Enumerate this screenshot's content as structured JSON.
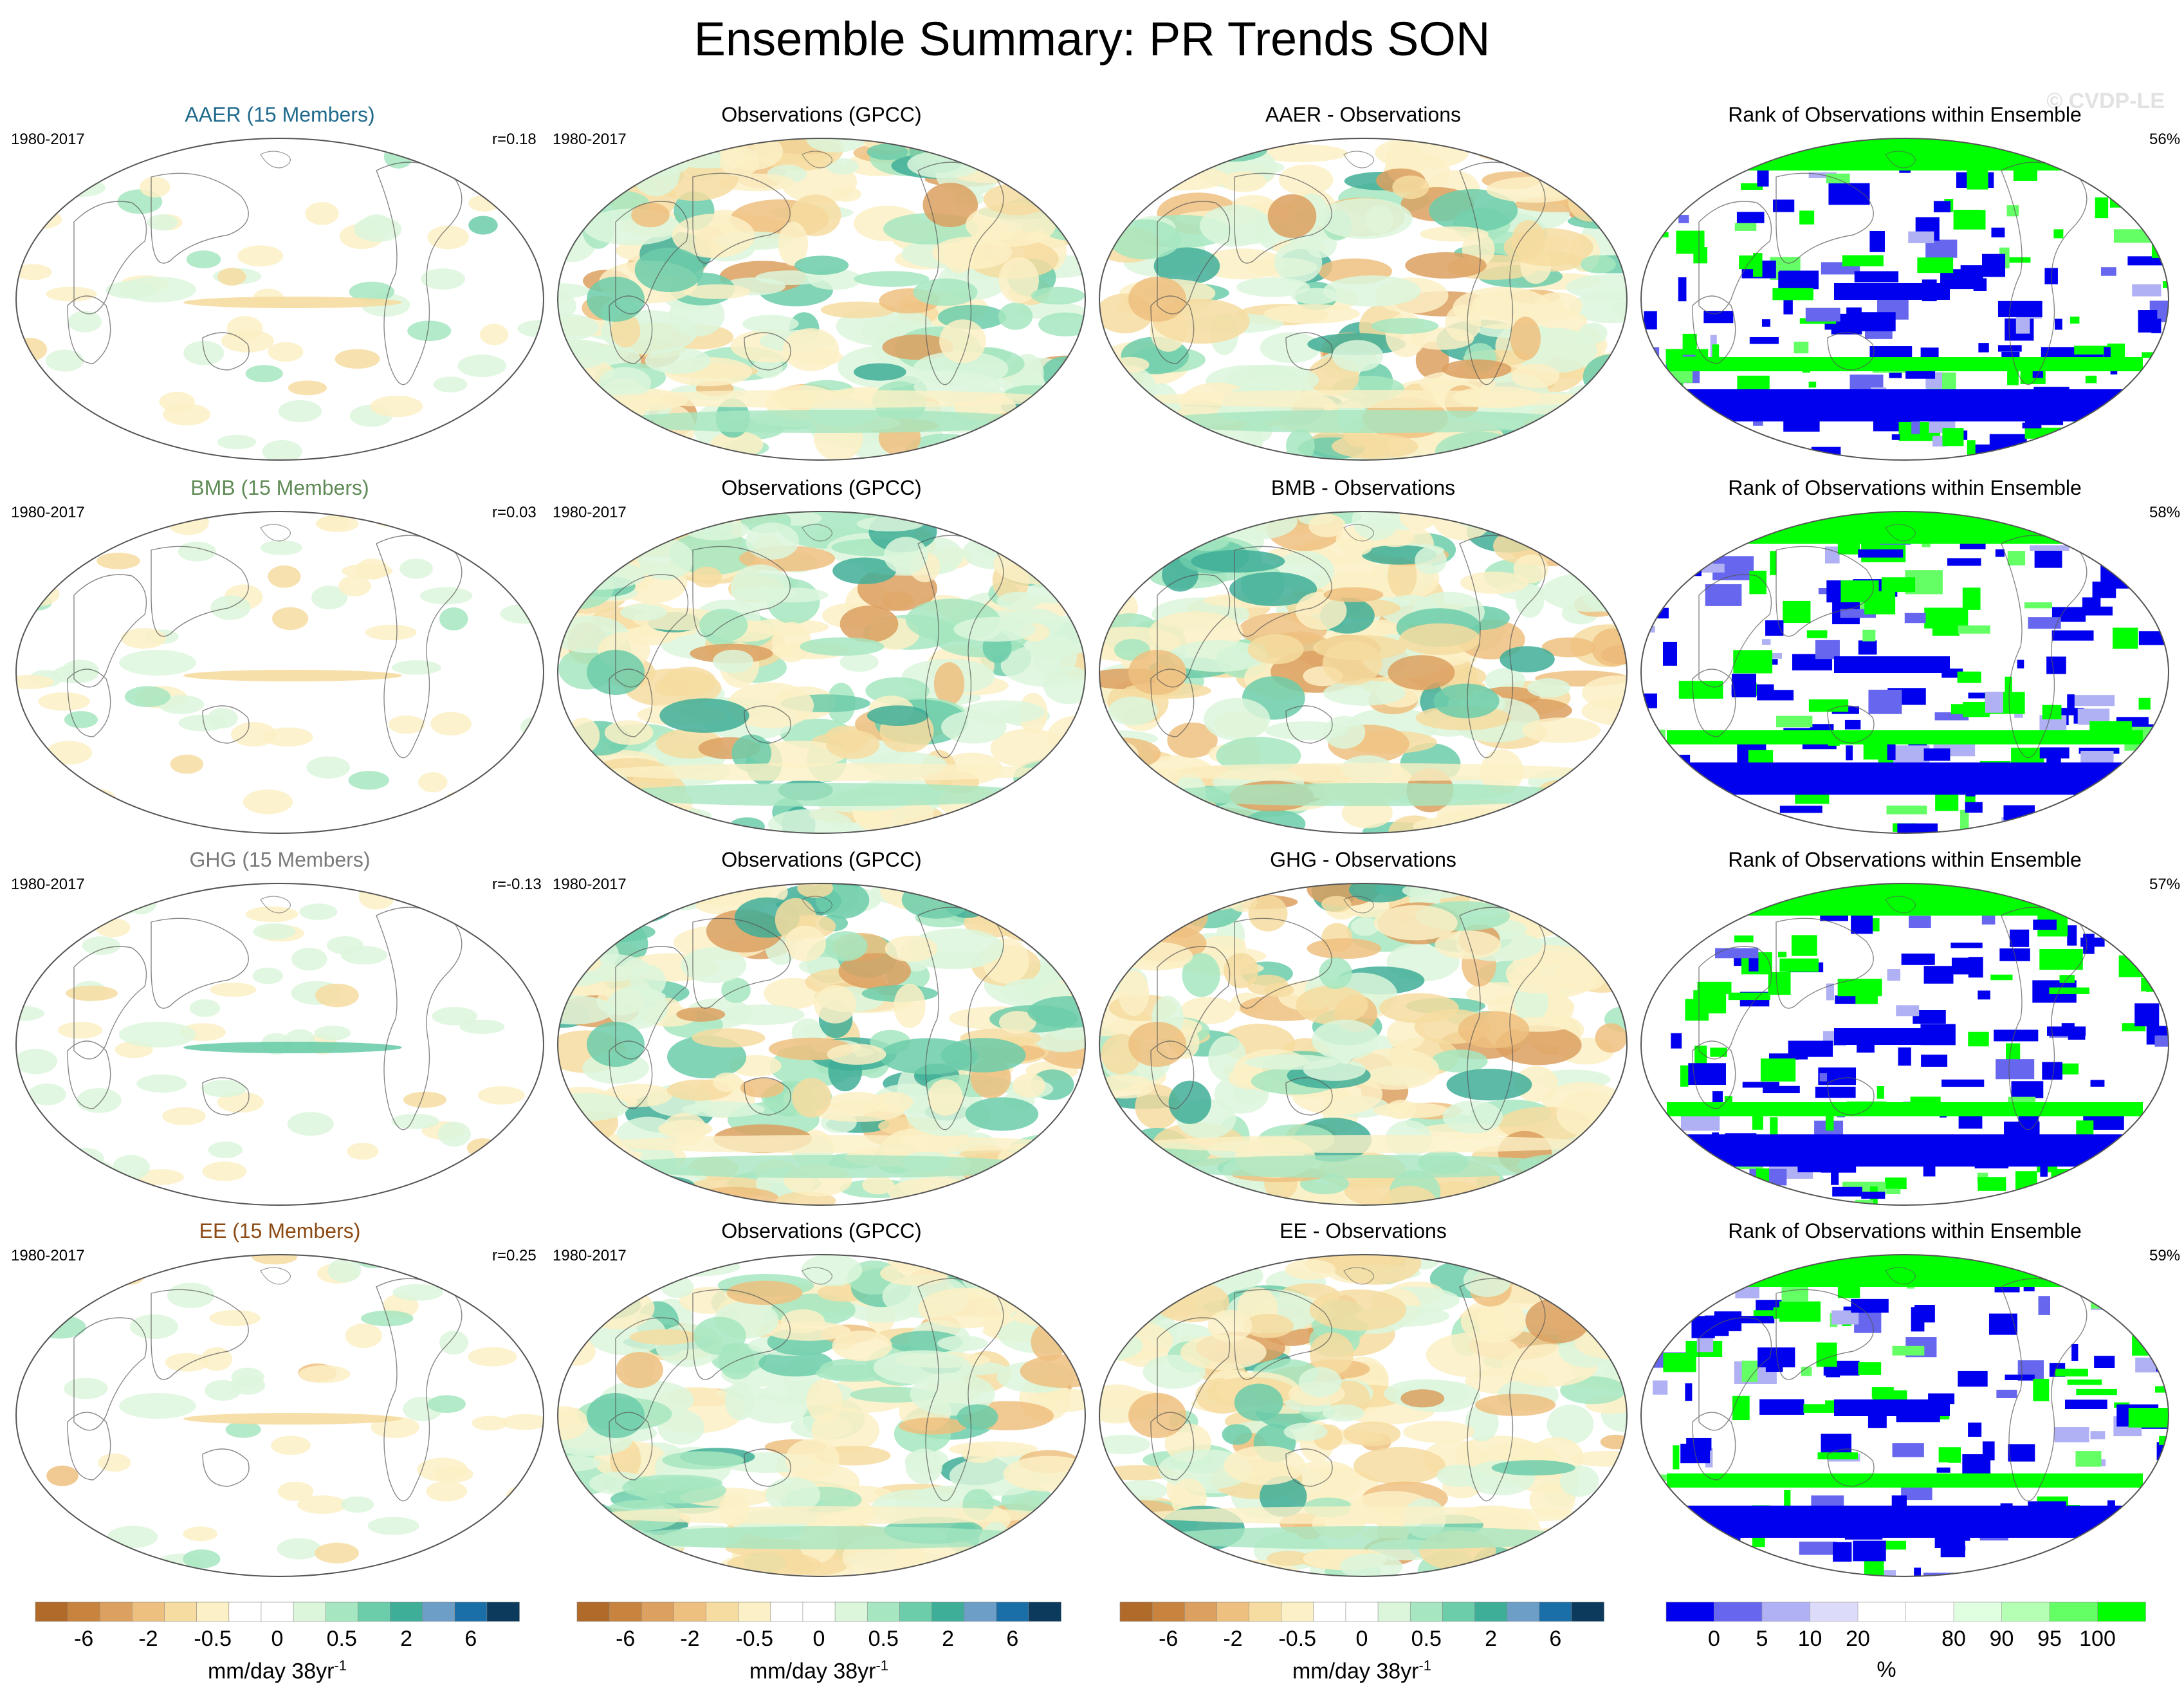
{
  "title": "Ensemble Summary: PR Trends SON",
  "watermark": "© CVDP-LE",
  "colors": {
    "rank": [
      "#0000ee",
      "#6666ee",
      "#b0b0f4",
      "#dcdcfa",
      "#ffffff",
      "#ffffff",
      "#e0ffe0",
      "#b4ffb4",
      "#64ff64",
      "#00ff00"
    ]
  },
  "chart_data": {
    "type": "heatmap",
    "layout": "4 rows x 4 columns of global map panels",
    "variable": "Precipitation trends, SON",
    "column_types": [
      "ensemble_mean",
      "observations",
      "difference",
      "rank"
    ],
    "rows": [
      {
        "experiment": "AAER",
        "color": "#1f6a8c",
        "panels": [
          {
            "title": "AAER (15 Members)",
            "period": "1980-2017",
            "corr": "r=0.18"
          },
          {
            "title": "Observations (GPCC)",
            "period": "1980-2017"
          },
          {
            "title": "AAER - Observations"
          },
          {
            "title": "Rank of Observations within Ensemble",
            "percent": "56%"
          }
        ]
      },
      {
        "experiment": "BMB",
        "color": "#5f8a55",
        "panels": [
          {
            "title": "BMB (15 Members)",
            "period": "1980-2017",
            "corr": "r=0.03"
          },
          {
            "title": "Observations (GPCC)",
            "period": "1980-2017"
          },
          {
            "title": "BMB - Observations"
          },
          {
            "title": "Rank of Observations within Ensemble",
            "percent": "58%"
          }
        ]
      },
      {
        "experiment": "GHG",
        "color": "#7a7a7a",
        "panels": [
          {
            "title": "GHG (15 Members)",
            "period": "1980-2017",
            "corr": "r=-0.13"
          },
          {
            "title": "Observations (GPCC)",
            "period": "1980-2017"
          },
          {
            "title": "GHG - Observations"
          },
          {
            "title": "Rank of Observations within Ensemble",
            "percent": "57%"
          }
        ]
      },
      {
        "experiment": "EE",
        "color": "#8b4a14",
        "panels": [
          {
            "title": "EE (15 Members)",
            "period": "1980-2017",
            "corr": "r=0.25"
          },
          {
            "title": "Observations (GPCC)",
            "period": "1980-2017"
          },
          {
            "title": "EE - Observations"
          },
          {
            "title": "Rank of Observations within Ensemble",
            "percent": "59%"
          }
        ]
      }
    ],
    "trend_colorbar": {
      "colors": [
        "#b06a2a",
        "#c8843e",
        "#dca060",
        "#eec07f",
        "#f6dca0",
        "#fbf0c6",
        "#ffffff",
        "#ffffff",
        "#dcf6dc",
        "#a6e6c0",
        "#6ccdaa",
        "#3fae98",
        "#6c9ec8",
        "#1a6fa8",
        "#0c3a5c"
      ],
      "tick_labels": [
        "-6",
        "-2",
        "-0.5",
        "0",
        "0.5",
        "2",
        "6"
      ],
      "units": "mm/day 38yr",
      "units_superscript": "-1"
    },
    "rank_colorbar": {
      "tick_labels": [
        "0",
        "5",
        "10",
        "20",
        "80",
        "90",
        "95",
        "100"
      ],
      "units": "%"
    }
  }
}
